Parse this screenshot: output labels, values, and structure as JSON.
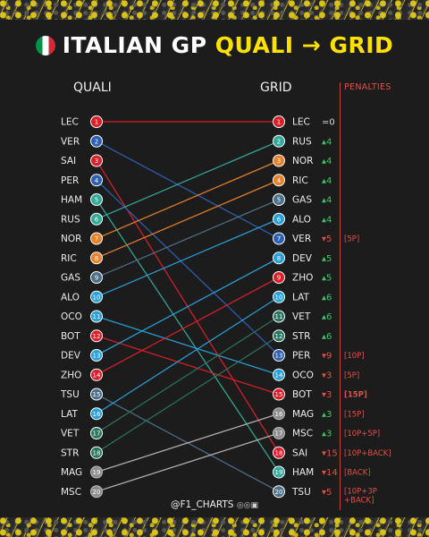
{
  "header": {
    "title_white": "ITALIAN GP",
    "title_yellow": "QUALI → GRID",
    "flag_icon": "italy-flag-icon"
  },
  "columns": {
    "quali": "QUALI",
    "grid": "GRID",
    "penalties": "PENALTIES"
  },
  "footer": {
    "handle": "@F1_CHARTS",
    "social_icons": "◎◎▣"
  },
  "colors": {
    "red": "#d91f2a",
    "blue": "#2f5fb0",
    "teal": "#34a99a",
    "orange": "#e8822a",
    "slate": "#4d7088",
    "cyan": "#2aa0d8",
    "darkteal": "#2a7560",
    "grey": "#8d8d8d",
    "darkgrey": "#555555",
    "up": "#3ec46a",
    "down": "#e0504a",
    "penalty": "#e0504a"
  },
  "chart_data": {
    "type": "slope",
    "title": "ITALIAN GP QUALI → GRID",
    "left_axis": "QUALI",
    "right_axis": "GRID",
    "quali_order": [
      "LEC",
      "VER",
      "SAI",
      "PER",
      "HAM",
      "RUS",
      "NOR",
      "RIC",
      "GAS",
      "ALO",
      "OCO",
      "BOT",
      "DEV",
      "ZHO",
      "TSU",
      "LAT",
      "VET",
      "STR",
      "MAG",
      "MSC"
    ],
    "drivers": [
      {
        "code": "LEC",
        "quali": 1,
        "grid": 1,
        "change": "=0",
        "penalty": "",
        "color": "red"
      },
      {
        "code": "VER",
        "quali": 2,
        "grid": 7,
        "change": "5",
        "penalty": "[5P]",
        "color": "blue"
      },
      {
        "code": "SAI",
        "quali": 3,
        "grid": 18,
        "change": "15",
        "penalty": "[10P+BACK]",
        "color": "red"
      },
      {
        "code": "PER",
        "quali": 4,
        "grid": 13,
        "change": "9",
        "penalty": "[10P]",
        "color": "blue"
      },
      {
        "code": "HAM",
        "quali": 5,
        "grid": 19,
        "change": "14",
        "penalty": "[BACK]",
        "color": "teal"
      },
      {
        "code": "RUS",
        "quali": 6,
        "grid": 2,
        "change": "4",
        "penalty": "",
        "color": "teal"
      },
      {
        "code": "NOR",
        "quali": 7,
        "grid": 3,
        "change": "4",
        "penalty": "",
        "color": "orange"
      },
      {
        "code": "RIC",
        "quali": 8,
        "grid": 4,
        "change": "4",
        "penalty": "",
        "color": "orange"
      },
      {
        "code": "GAS",
        "quali": 9,
        "grid": 5,
        "change": "4",
        "penalty": "",
        "color": "slate"
      },
      {
        "code": "ALO",
        "quali": 10,
        "grid": 6,
        "change": "4",
        "penalty": "",
        "color": "cyan"
      },
      {
        "code": "OCO",
        "quali": 11,
        "grid": 14,
        "change": "3",
        "penalty": "[5P]",
        "color": "cyan"
      },
      {
        "code": "BOT",
        "quali": 12,
        "grid": 15,
        "change": "3",
        "penalty": "[15P]",
        "color": "red"
      },
      {
        "code": "DEV",
        "quali": 13,
        "grid": 8,
        "change": "5",
        "penalty": "",
        "color": "cyan"
      },
      {
        "code": "ZHO",
        "quali": 14,
        "grid": 9,
        "change": "5",
        "penalty": "",
        "color": "red"
      },
      {
        "code": "TSU",
        "quali": 15,
        "grid": 20,
        "change": "5",
        "penalty": "[10P+3P +BACK]",
        "color": "slate"
      },
      {
        "code": "LAT",
        "quali": 16,
        "grid": 10,
        "change": "6",
        "penalty": "",
        "color": "cyan"
      },
      {
        "code": "VET",
        "quali": 17,
        "grid": 11,
        "change": "6",
        "penalty": "",
        "color": "darkteal"
      },
      {
        "code": "STR",
        "quali": 18,
        "grid": 12,
        "change": "6",
        "penalty": "",
        "color": "darkteal"
      },
      {
        "code": "MAG",
        "quali": 19,
        "grid": 16,
        "change": "3",
        "penalty": "[15P]",
        "color": "grey"
      },
      {
        "code": "MSC",
        "quali": 20,
        "grid": 17,
        "change": "3",
        "penalty": "[10P+5P]",
        "color": "grey"
      }
    ]
  }
}
